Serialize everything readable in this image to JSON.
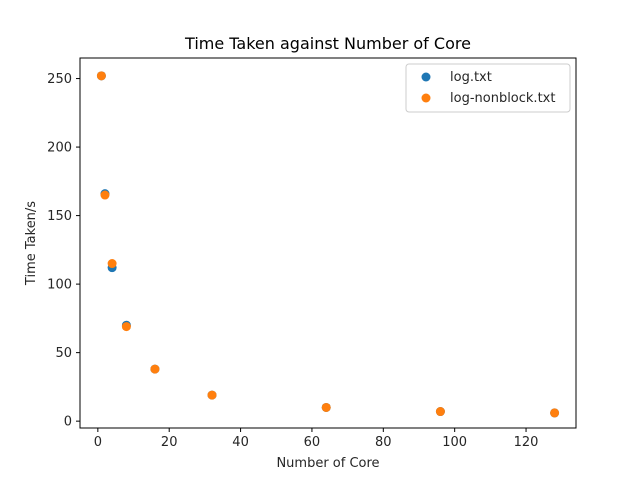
{
  "chart_data": {
    "type": "scatter",
    "title": "Time Taken against Number of Core",
    "xlabel": "Number of Core",
    "ylabel": "Time Taken/s",
    "xlim": [
      -5,
      134
    ],
    "ylim": [
      -5,
      265
    ],
    "xticks": [
      0,
      20,
      40,
      60,
      80,
      100,
      120
    ],
    "yticks": [
      0,
      50,
      100,
      150,
      200,
      250
    ],
    "grid": false,
    "legend_position": "top-right",
    "series": [
      {
        "name": "log.txt",
        "color": "#1f77b4",
        "x": [
          1,
          2,
          4,
          8,
          16,
          32,
          64,
          96,
          128
        ],
        "y": [
          252,
          166,
          112,
          70,
          38,
          19,
          10,
          7,
          6
        ]
      },
      {
        "name": "log-nonblock.txt",
        "color": "#ff7f0e",
        "x": [
          1,
          2,
          4,
          8,
          16,
          32,
          64,
          96,
          128
        ],
        "y": [
          252,
          165,
          115,
          69,
          38,
          19,
          10,
          7,
          6
        ]
      }
    ]
  }
}
